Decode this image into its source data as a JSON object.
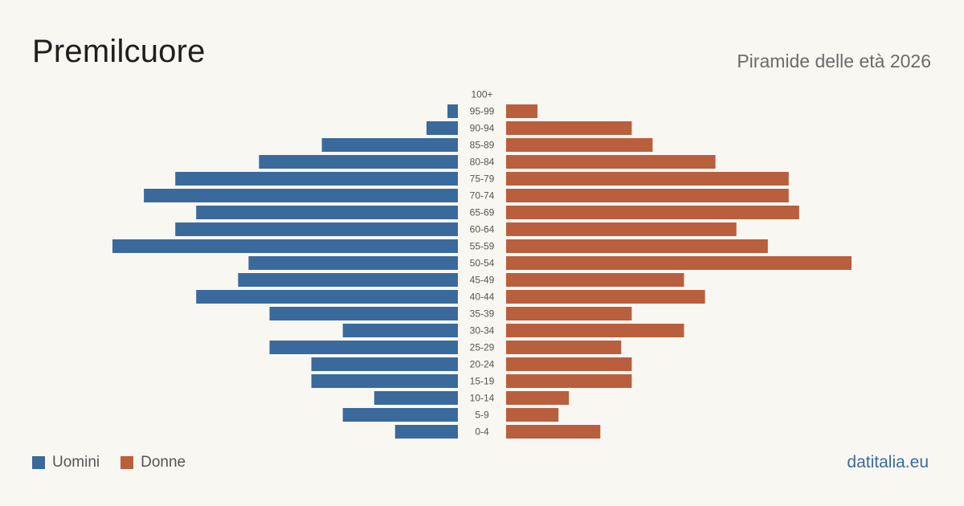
{
  "header": {
    "title": "Premilcuore",
    "subtitle": "Piramide delle età 2026"
  },
  "legend": {
    "men_label": "Uomini",
    "women_label": "Donne"
  },
  "footer": {
    "credit": "datitalia.eu"
  },
  "colors": {
    "men": "#3a6a9c",
    "women": "#b95f3d",
    "age_label": "#555555"
  },
  "chart_data": {
    "type": "bar",
    "orientation": "horizontal-pyramid",
    "categories": [
      "100+",
      "95-99",
      "90-94",
      "85-89",
      "80-84",
      "75-79",
      "70-74",
      "65-69",
      "60-64",
      "55-59",
      "50-54",
      "45-49",
      "40-44",
      "35-39",
      "30-34",
      "25-29",
      "20-24",
      "15-19",
      "10-14",
      "5-9",
      "0-4"
    ],
    "series": [
      {
        "name": "Uomini",
        "values": [
          0,
          1,
          3,
          13,
          19,
          27,
          30,
          25,
          27,
          33,
          20,
          21,
          25,
          18,
          11,
          18,
          14,
          14,
          8,
          11,
          6
        ]
      },
      {
        "name": "Donne",
        "values": [
          0,
          3,
          12,
          14,
          20,
          27,
          27,
          28,
          22,
          25,
          33,
          17,
          19,
          12,
          17,
          11,
          12,
          12,
          6,
          5,
          9
        ]
      }
    ],
    "xlim": [
      0,
      33
    ],
    "grid": false,
    "legend_position": "bottom-left"
  }
}
